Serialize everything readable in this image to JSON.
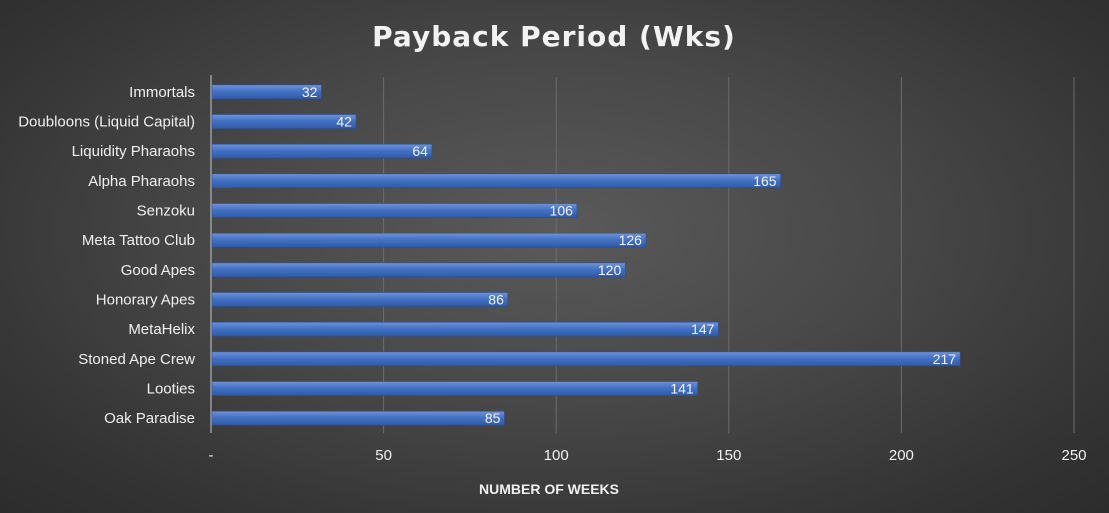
{
  "chart_data": {
    "type": "bar",
    "orientation": "horizontal",
    "title": "Payback Period (Wks)",
    "xlabel": "NUMBER OF WEEKS",
    "ylabel": "",
    "xlim": [
      0,
      250
    ],
    "x_ticks": [
      0,
      50,
      100,
      150,
      200,
      250
    ],
    "x_tick_labels": [
      "-",
      "50",
      "100",
      "150",
      "200",
      "250"
    ],
    "grid": "vertical",
    "legend": "none",
    "bar_color": "#4472c4",
    "categories": [
      "Immortals",
      "Doubloons (Liquid Capital)",
      "Liquidity Pharaohs",
      "Alpha Pharaohs",
      "Senzoku",
      "Meta Tattoo Club",
      "Good Apes",
      "Honorary Apes",
      "MetaHelix",
      "Stoned Ape Crew",
      "Looties",
      "Oak Paradise"
    ],
    "values": [
      32,
      42,
      64,
      165,
      106,
      126,
      120,
      86,
      147,
      217,
      141,
      85
    ]
  }
}
